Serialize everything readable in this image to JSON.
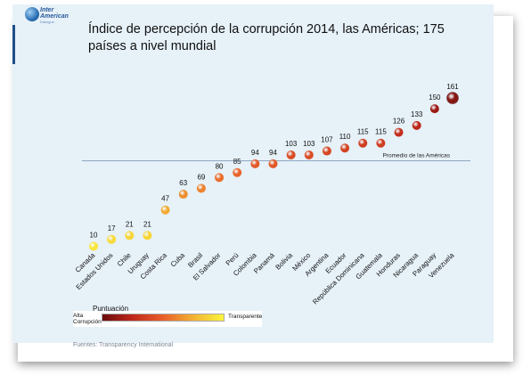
{
  "logo": {
    "line1": "Inter",
    "line2": "American",
    "line3": "Dialogue"
  },
  "title": "Índice de percepción de la corrupción 2014, las Américas; 175 países a nivel mundial",
  "chart_data": {
    "type": "scatter",
    "title": "Índice de percepción de la corrupción 2014, las Américas; 175 países a nivel mundial",
    "categories": [
      "Canada",
      "Estados Unidos",
      "Chile",
      "Uruguay",
      "Costa Rica",
      "Cuba",
      "Brasil",
      "El Salvador",
      "Perú",
      "Colombia",
      "Panamá",
      "Bolivia",
      "México",
      "Argentina",
      "Ecuador",
      "República Dominicana",
      "Guatemala",
      "Honduras",
      "Nicaragua",
      "Paraguay",
      "Venezuela"
    ],
    "values": [
      10,
      17,
      21,
      21,
      47,
      63,
      69,
      80,
      85,
      94,
      94,
      103,
      103,
      107,
      110,
      115,
      115,
      126,
      133,
      150,
      161
    ],
    "data_labels": [
      "10",
      "17",
      "21",
      "21",
      "47",
      "63",
      "69",
      "80",
      "85",
      "94",
      "94",
      "103",
      "103",
      "107",
      "110",
      "115",
      "115",
      "126",
      "133",
      "150",
      "161"
    ],
    "reference_line": {
      "label": "Promedio de las Américas",
      "value": 98
    },
    "ylim": [
      0,
      175
    ],
    "grid": false,
    "legend": {
      "title": "Puntuación",
      "left_label_line1": "Alta",
      "left_label_line2": "Corrupción",
      "right_label": "Transparente",
      "gradient_colors": [
        "#6b0d0d",
        "#c0281b",
        "#e8602a",
        "#f3b233",
        "#fbf53c"
      ]
    }
  },
  "source": "Fuentes: Transparency International"
}
